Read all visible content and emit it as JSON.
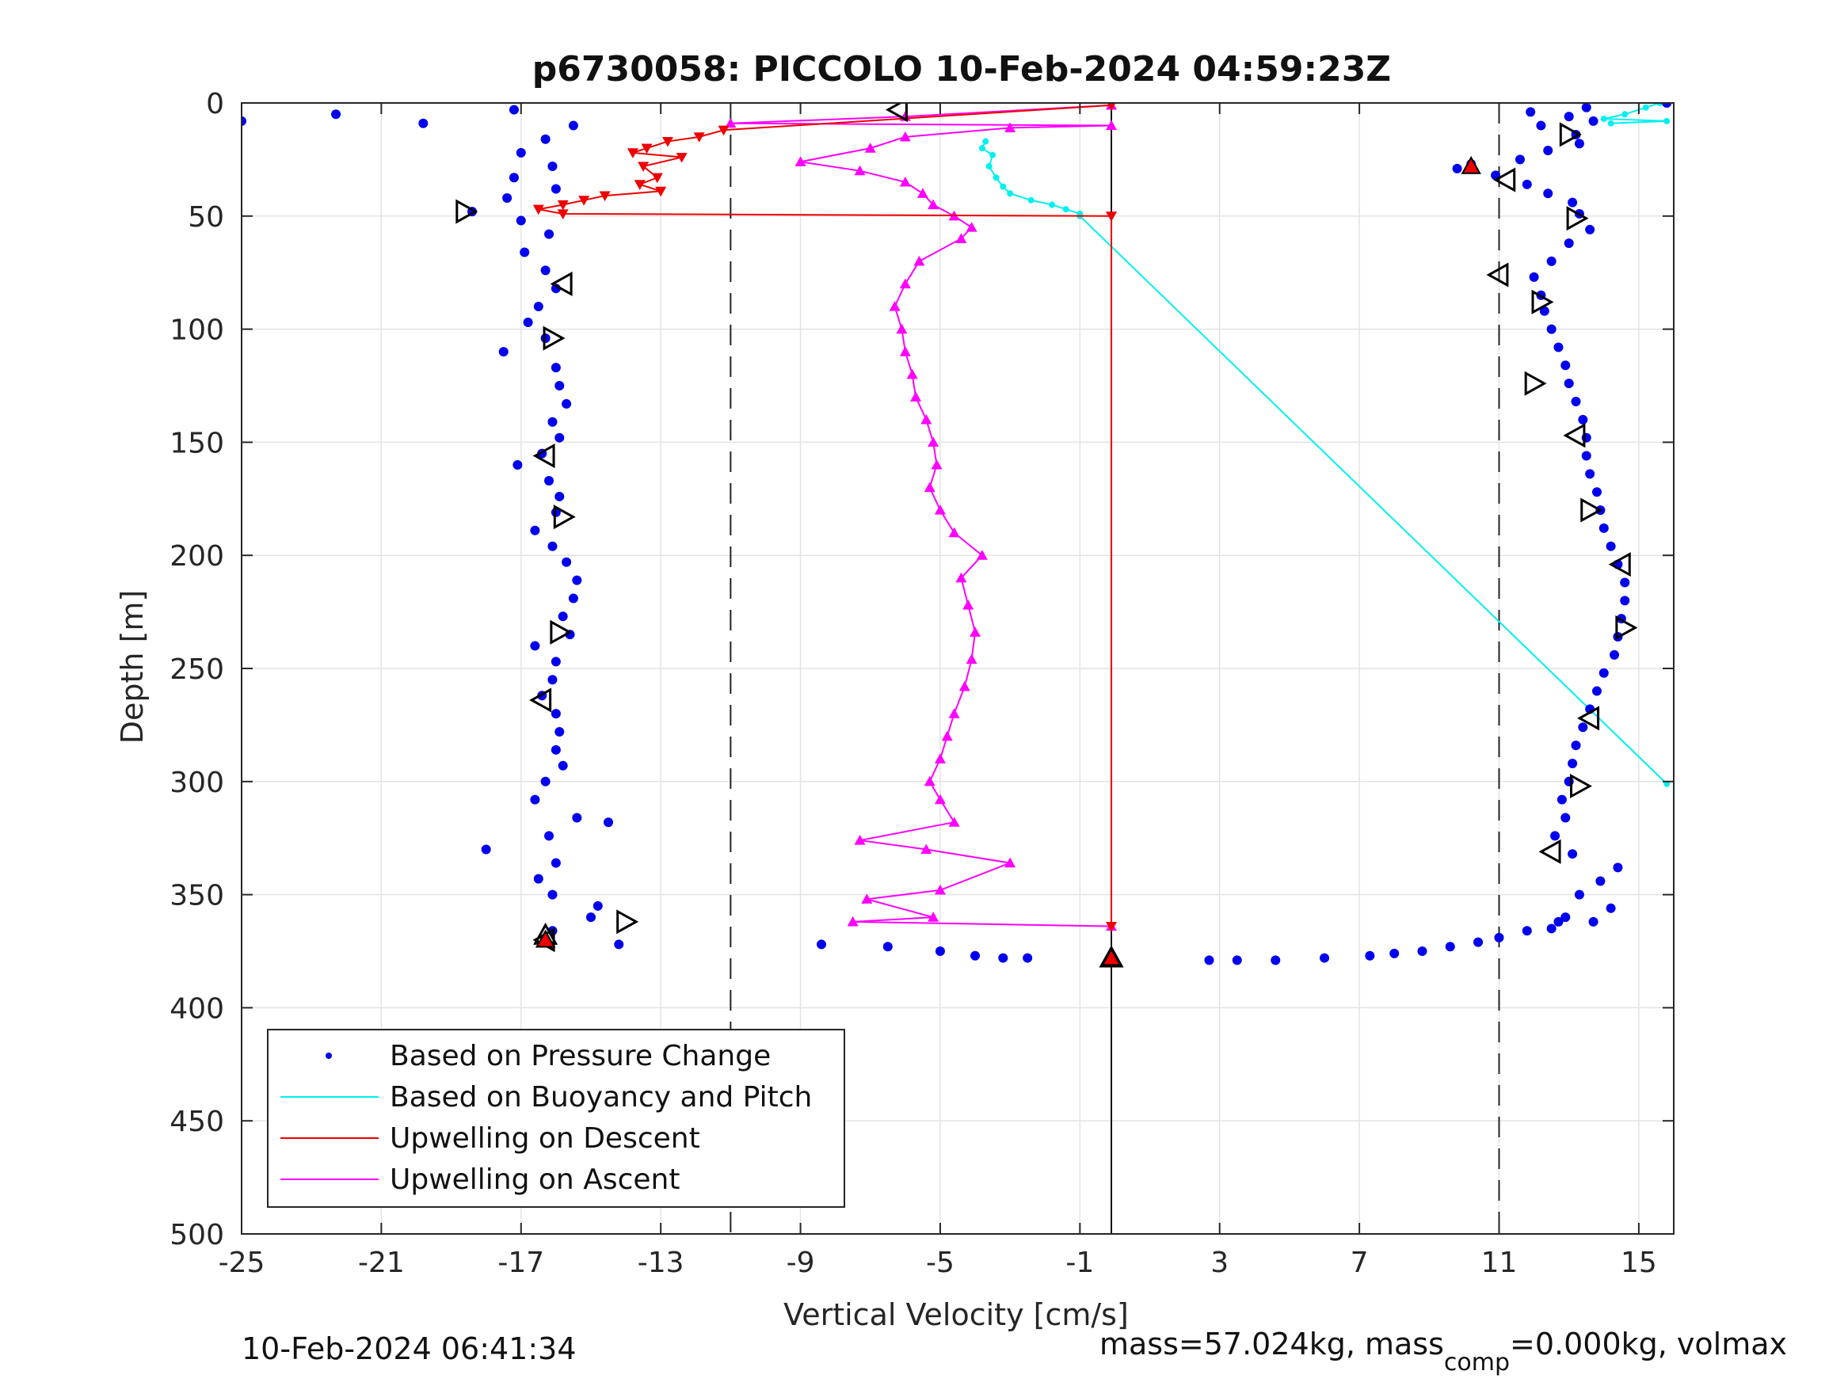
{
  "chart_data": {
    "type": "scatter",
    "title": "p6730058: PICCOLO 10-Feb-2024 04:59:23Z",
    "xlabel": "Vertical Velocity [cm/s]",
    "ylabel": "Depth [m]",
    "xlim": [
      -25,
      16
    ],
    "ylim": [
      500,
      0
    ],
    "y_reversed": true,
    "grid": true,
    "legend_position": "bottom-left",
    "x_ticks": [
      "-25",
      "-21",
      "-17",
      "-13",
      "-9",
      "-5",
      "-1",
      "3",
      "7",
      "11",
      "15"
    ],
    "y_ticks": [
      "0",
      "50",
      "100",
      "150",
      "200",
      "250",
      "300",
      "350",
      "400",
      "450",
      "500"
    ],
    "reference_lines": {
      "dashed_x": [
        -11,
        11
      ],
      "solid_x": [
        -0.1
      ]
    },
    "series": [
      {
        "name": "Based on Pressure Change",
        "style": "dots",
        "color": "#0000ee",
        "descent_points": [
          [
            -25,
            8
          ],
          [
            -22.3,
            5
          ],
          [
            -19.8,
            9
          ],
          [
            -17.2,
            3
          ],
          [
            -15.5,
            10
          ],
          [
            -16.3,
            16
          ],
          [
            -17.0,
            22
          ],
          [
            -16.1,
            28
          ],
          [
            -17.2,
            33
          ],
          [
            -16.0,
            38
          ],
          [
            -17.4,
            42
          ],
          [
            -18.4,
            48
          ],
          [
            -17.0,
            52
          ],
          [
            -16.2,
            58
          ],
          [
            -16.9,
            66
          ],
          [
            -16.3,
            74
          ],
          [
            -16.0,
            82
          ],
          [
            -16.5,
            90
          ],
          [
            -16.8,
            97
          ],
          [
            -16.3,
            104
          ],
          [
            -17.5,
            110
          ],
          [
            -16.0,
            117
          ],
          [
            -15.9,
            125
          ],
          [
            -15.7,
            133
          ],
          [
            -16.1,
            141
          ],
          [
            -15.9,
            148
          ],
          [
            -16.4,
            155
          ],
          [
            -17.1,
            160
          ],
          [
            -16.2,
            167
          ],
          [
            -15.9,
            174
          ],
          [
            -16.0,
            181
          ],
          [
            -16.6,
            189
          ],
          [
            -16.1,
            196
          ],
          [
            -15.7,
            203
          ],
          [
            -15.4,
            211
          ],
          [
            -15.5,
            219
          ],
          [
            -15.8,
            227
          ],
          [
            -15.6,
            235
          ],
          [
            -16.6,
            240
          ],
          [
            -16.0,
            247
          ],
          [
            -16.1,
            255
          ],
          [
            -16.4,
            262
          ],
          [
            -16.0,
            270
          ],
          [
            -15.9,
            278
          ],
          [
            -16.0,
            286
          ],
          [
            -15.8,
            293
          ],
          [
            -16.3,
            300
          ],
          [
            -16.6,
            308
          ],
          [
            -15.4,
            316
          ],
          [
            -14.5,
            318
          ],
          [
            -16.2,
            324
          ],
          [
            -18.0,
            330
          ],
          [
            -16.0,
            336
          ],
          [
            -16.5,
            343
          ],
          [
            -16.1,
            350
          ],
          [
            -14.8,
            355
          ],
          [
            -15.0,
            360
          ],
          [
            -16.1,
            366
          ],
          [
            -16.3,
            370
          ],
          [
            -14.2,
            372
          ]
        ],
        "bottom_points": [
          [
            -8.4,
            372
          ],
          [
            -6.5,
            373
          ],
          [
            -5.0,
            375
          ],
          [
            -4.0,
            377
          ],
          [
            -3.2,
            378
          ],
          [
            -2.5,
            378
          ],
          [
            2.7,
            379
          ],
          [
            3.5,
            379
          ],
          [
            4.6,
            379
          ],
          [
            6.0,
            378
          ],
          [
            7.3,
            377
          ],
          [
            8.0,
            376
          ],
          [
            8.8,
            375
          ],
          [
            9.6,
            373
          ],
          [
            10.4,
            371
          ],
          [
            11.0,
            369
          ],
          [
            11.8,
            366
          ],
          [
            12.7,
            362
          ]
        ],
        "ascent_points": [
          [
            15.8,
            0
          ],
          [
            13.5,
            2
          ],
          [
            11.9,
            4
          ],
          [
            13.0,
            6
          ],
          [
            13.7,
            8
          ],
          [
            12.2,
            10
          ],
          [
            13.2,
            14
          ],
          [
            13.3,
            18
          ],
          [
            12.4,
            21
          ],
          [
            11.6,
            25
          ],
          [
            10.2,
            27
          ],
          [
            9.8,
            29
          ],
          [
            10.9,
            32
          ],
          [
            11.8,
            36
          ],
          [
            12.4,
            40
          ],
          [
            13.1,
            44
          ],
          [
            13.3,
            49
          ],
          [
            13.6,
            56
          ],
          [
            13.0,
            62
          ],
          [
            12.5,
            70
          ],
          [
            12.0,
            77
          ],
          [
            12.2,
            85
          ],
          [
            12.3,
            92
          ],
          [
            12.5,
            100
          ],
          [
            12.7,
            108
          ],
          [
            12.9,
            116
          ],
          [
            13.0,
            124
          ],
          [
            13.2,
            132
          ],
          [
            13.4,
            140
          ],
          [
            13.5,
            148
          ],
          [
            13.5,
            156
          ],
          [
            13.6,
            164
          ],
          [
            13.8,
            172
          ],
          [
            13.9,
            180
          ],
          [
            14.0,
            188
          ],
          [
            14.2,
            196
          ],
          [
            14.4,
            204
          ],
          [
            14.6,
            212
          ],
          [
            14.6,
            220
          ],
          [
            14.5,
            228
          ],
          [
            14.4,
            236
          ],
          [
            14.3,
            244
          ],
          [
            14.0,
            252
          ],
          [
            13.8,
            260
          ],
          [
            13.6,
            268
          ],
          [
            13.4,
            276
          ],
          [
            13.2,
            284
          ],
          [
            13.1,
            292
          ],
          [
            13.0,
            300
          ],
          [
            12.8,
            308
          ],
          [
            12.9,
            316
          ],
          [
            12.6,
            324
          ],
          [
            13.1,
            332
          ],
          [
            14.4,
            338
          ],
          [
            13.9,
            344
          ],
          [
            13.3,
            350
          ],
          [
            14.2,
            356
          ],
          [
            12.9,
            360
          ],
          [
            13.7,
            362
          ],
          [
            12.5,
            365
          ]
        ]
      },
      {
        "name": "Based on Buoyancy and Pitch",
        "style": "line",
        "color": "#00f0f0",
        "segments": [
          [
            [
              15.6,
              0
            ],
            [
              15.2,
              2
            ],
            [
              14.6,
              5
            ],
            [
              14.0,
              7
            ],
            [
              15.8,
              8
            ],
            [
              14.2,
              9
            ]
          ],
          [
            [
              -3.7,
              17
            ],
            [
              -3.8,
              20
            ],
            [
              -3.5,
              23
            ],
            [
              -3.6,
              28
            ],
            [
              -3.4,
              33
            ],
            [
              -3.2,
              37
            ],
            [
              -3.0,
              40
            ],
            [
              -2.4,
              43
            ],
            [
              -1.8,
              45
            ],
            [
              -1.4,
              47
            ],
            [
              -1.0,
              49
            ]
          ],
          [
            [
              -1.0,
              50
            ],
            [
              15.8,
              301
            ]
          ]
        ]
      },
      {
        "name": "Upwelling on Descent",
        "style": "line-downtriangle",
        "color": "#ee0000",
        "profile": [
          [
            -0.1,
            1
          ],
          [
            -11.2,
            12
          ],
          [
            -11.9,
            15
          ],
          [
            -12.8,
            17
          ],
          [
            -13.4,
            20
          ],
          [
            -13.8,
            22
          ],
          [
            -12.4,
            24
          ],
          [
            -13.5,
            28
          ],
          [
            -13.1,
            33
          ],
          [
            -13.6,
            36
          ],
          [
            -13.0,
            39
          ],
          [
            -14.6,
            41
          ],
          [
            -15.2,
            43
          ],
          [
            -15.8,
            45
          ],
          [
            -16.5,
            47
          ],
          [
            -15.8,
            49
          ],
          [
            -0.1,
            50
          ],
          [
            -0.1,
            364
          ]
        ]
      },
      {
        "name": "Upwelling on Ascent",
        "style": "line-uptriangle",
        "color": "#ff00ff",
        "profile": [
          [
            -0.1,
            364
          ],
          [
            -7.5,
            362
          ],
          [
            -5.2,
            360
          ],
          [
            -7.1,
            352
          ],
          [
            -5.0,
            348
          ],
          [
            -3.0,
            336
          ],
          [
            -5.4,
            330
          ],
          [
            -7.3,
            326
          ],
          [
            -4.6,
            318
          ],
          [
            -5.0,
            308
          ],
          [
            -5.3,
            300
          ],
          [
            -5.0,
            290
          ],
          [
            -4.8,
            280
          ],
          [
            -4.6,
            270
          ],
          [
            -4.3,
            258
          ],
          [
            -4.1,
            246
          ],
          [
            -4.0,
            234
          ],
          [
            -4.2,
            222
          ],
          [
            -4.4,
            210
          ],
          [
            -3.8,
            200
          ],
          [
            -4.6,
            190
          ],
          [
            -5.0,
            180
          ],
          [
            -5.3,
            170
          ],
          [
            -5.1,
            160
          ],
          [
            -5.2,
            150
          ],
          [
            -5.4,
            140
          ],
          [
            -5.7,
            130
          ],
          [
            -5.8,
            120
          ],
          [
            -6.0,
            110
          ],
          [
            -6.1,
            100
          ],
          [
            -6.3,
            90
          ],
          [
            -6.0,
            80
          ],
          [
            -5.6,
            70
          ],
          [
            -4.4,
            60
          ],
          [
            -4.1,
            55
          ],
          [
            -4.6,
            50
          ],
          [
            -5.2,
            45
          ],
          [
            -5.5,
            40
          ],
          [
            -6.0,
            35
          ],
          [
            -7.3,
            30
          ],
          [
            -9.0,
            26
          ],
          [
            -7.0,
            20
          ],
          [
            -6.0,
            15
          ],
          [
            -3.0,
            11
          ],
          [
            -0.1,
            10
          ],
          [
            -11.0,
            9
          ],
          [
            -6.0,
            6
          ],
          [
            -0.1,
            1
          ]
        ]
      },
      {
        "name": "pitch markers",
        "style": "open-triangle",
        "color": "#000000",
        "points": [
          [
            -6.2,
            3,
            "left"
          ],
          [
            -18.6,
            48,
            "right"
          ],
          [
            -15.8,
            80,
            "left"
          ],
          [
            -16.1,
            104,
            "right"
          ],
          [
            -16.3,
            156,
            "left"
          ],
          [
            -15.8,
            183,
            "right"
          ],
          [
            -15.9,
            234,
            "right"
          ],
          [
            -16.4,
            264,
            "left"
          ],
          [
            -14.0,
            362,
            "right"
          ],
          [
            -16.3,
            370,
            "left"
          ],
          [
            13.0,
            14,
            "right"
          ],
          [
            11.2,
            34,
            "left"
          ],
          [
            13.2,
            51,
            "right"
          ],
          [
            11.0,
            76,
            "left"
          ],
          [
            12.2,
            88,
            "right"
          ],
          [
            12.0,
            124,
            "right"
          ],
          [
            13.2,
            147,
            "left"
          ],
          [
            13.6,
            180,
            "right"
          ],
          [
            14.5,
            204,
            "left"
          ],
          [
            14.6,
            232,
            "right"
          ],
          [
            13.6,
            272,
            "left"
          ],
          [
            13.3,
            302,
            "right"
          ],
          [
            12.5,
            331,
            "left"
          ],
          [
            -0.1,
            378,
            "up"
          ],
          [
            -16.3,
            368,
            "up"
          ]
        ]
      }
    ],
    "red_markers": [
      [
        10.2,
        28
      ],
      [
        -16.3,
        370
      ],
      [
        -0.1,
        378
      ]
    ]
  },
  "footer": {
    "timestamp": "10-Feb-2024 06:41:34",
    "mass_prefix": "mass=57.024kg, mass",
    "mass_sub": "comp",
    "mass_suffix": "=0.000kg, volmax"
  },
  "colors": {
    "pressure": "#0000ee",
    "buoyancy": "#00f0f0",
    "descent": "#ee0000",
    "ascent": "#ff00ff",
    "grid": "#e3e3e3",
    "axis": "#262626"
  }
}
